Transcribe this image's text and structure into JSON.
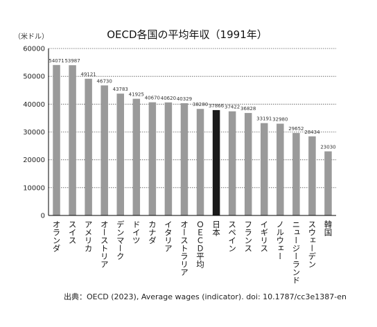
{
  "chart_data": {
    "type": "bar",
    "title": "OECD各国の平均年収（1991年）",
    "unit_label": "（米ドル）",
    "ylim": [
      0,
      60000
    ],
    "yticks": [
      0,
      10000,
      20000,
      30000,
      40000,
      50000,
      60000
    ],
    "grid": true,
    "categories": [
      "オランダ",
      "スイス",
      "アメリカ",
      "オーストリア",
      "デンマーク",
      "ドイツ",
      "カナダ",
      "イタリア",
      "オーストラリア",
      "ＯＥＣＤ平均",
      "日本",
      "スペイン",
      "フランス",
      "イギリス",
      "ノルウェー",
      "ニュージーランド",
      "スウェーデン",
      "韓国"
    ],
    "values": [
      54071,
      53987,
      49121,
      46730,
      43783,
      41925,
      40670,
      40620,
      40329,
      38280,
      37866,
      37422,
      36828,
      33191,
      32980,
      29652,
      28434,
      23030
    ],
    "highlight_category": "日本",
    "colors": {
      "bar": "#9a9a9a",
      "highlight": "#1a1a1a",
      "grid": "#555555",
      "axis": "#000000"
    }
  },
  "source": "出典：OECD (2023), Average wages (indicator). doi: 10.1787/cc3e1387-en"
}
